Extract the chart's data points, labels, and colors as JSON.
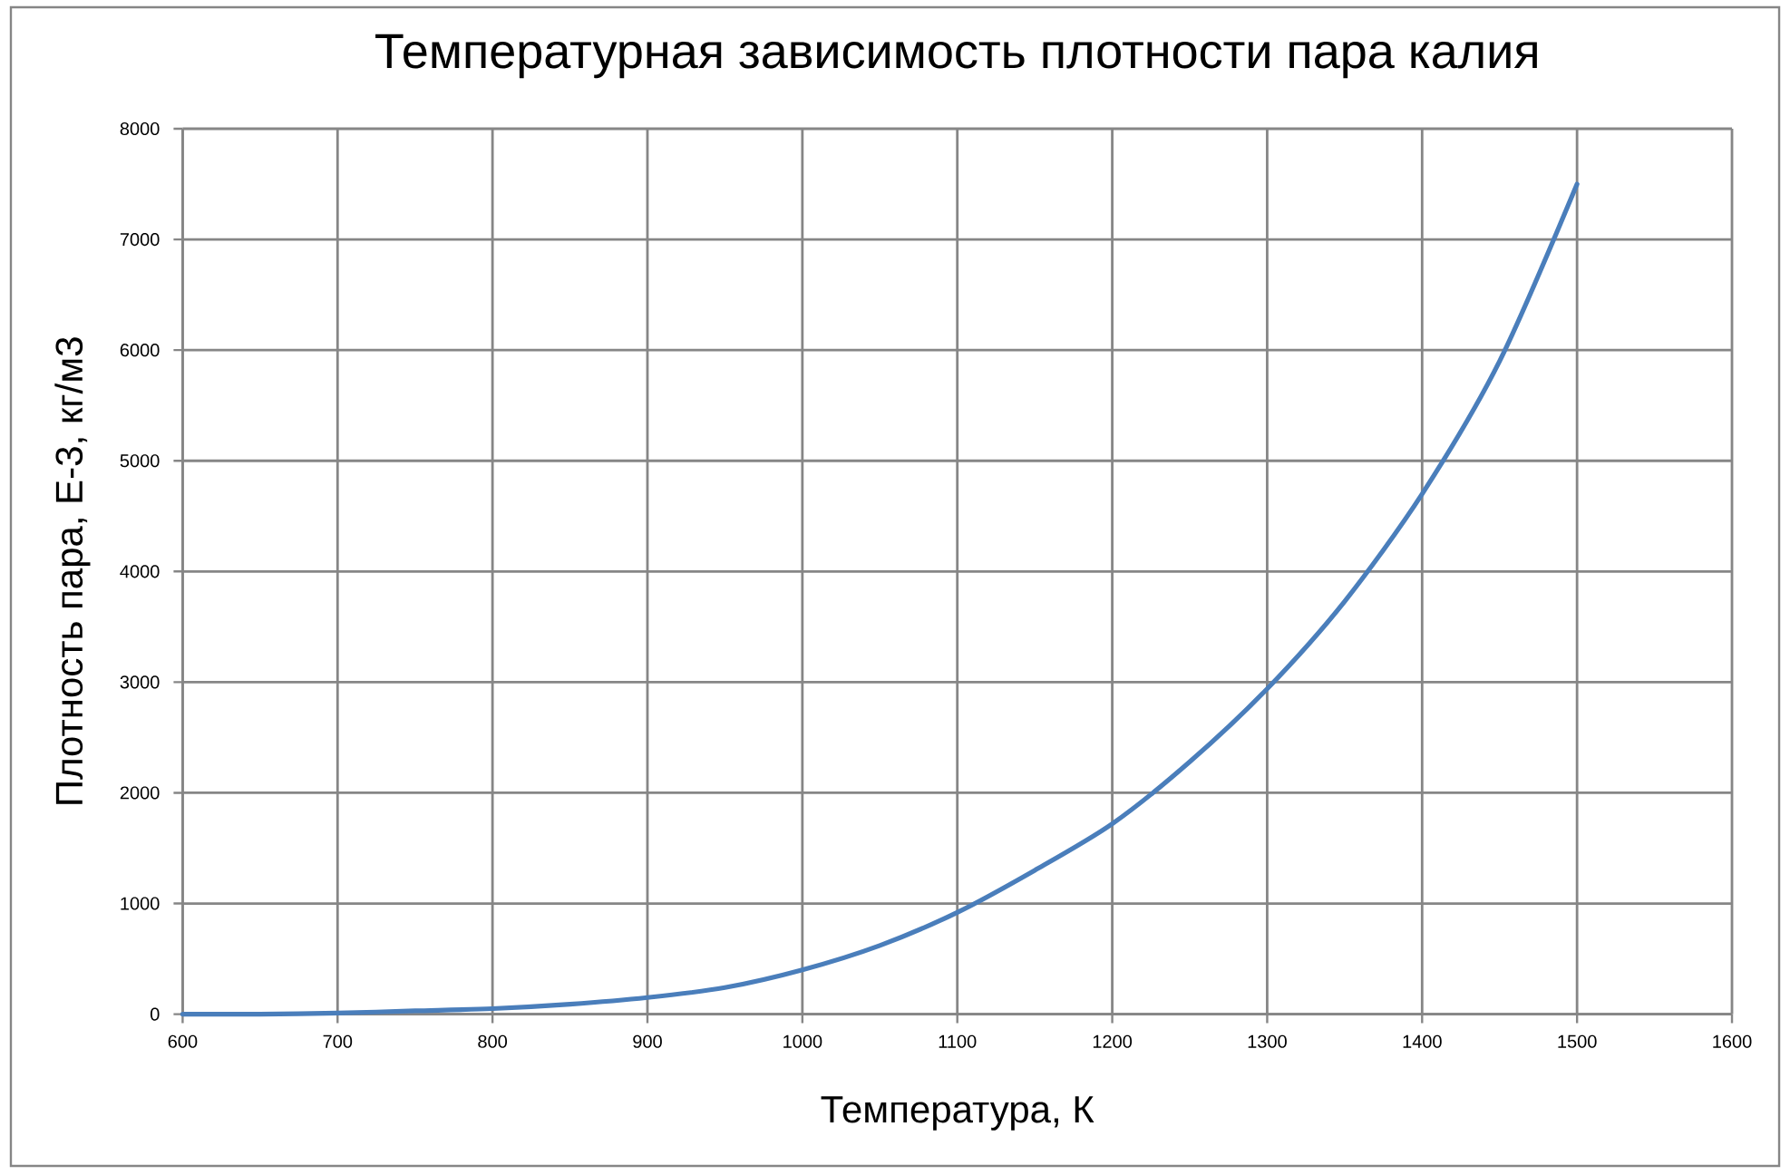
{
  "chart_data": {
    "type": "line",
    "title": "Температурная зависимость плотности пара калия",
    "xlabel": "Температура, К",
    "ylabel": "Плотность пара, Е-3, кг/м3",
    "x": [
      600,
      650,
      700,
      750,
      800,
      850,
      900,
      950,
      1000,
      1050,
      1100,
      1150,
      1200,
      1250,
      1300,
      1350,
      1400,
      1450,
      1500
    ],
    "series": [
      {
        "color": "#4a7ebb",
        "values": [
          0,
          0,
          10,
          30,
          50,
          90,
          150,
          240,
          400,
          620,
          920,
          1300,
          1720,
          2280,
          2940,
          3730,
          4700,
          5900,
          7500
        ]
      }
    ],
    "xlim": [
      600,
      1600
    ],
    "ylim": [
      0,
      8000
    ],
    "xticks": [
      600,
      700,
      800,
      900,
      1000,
      1100,
      1200,
      1300,
      1400,
      1500,
      1600
    ],
    "yticks": [
      0,
      1000,
      2000,
      3000,
      4000,
      5000,
      6000,
      7000,
      8000
    ],
    "grid": true,
    "legend": false,
    "marker": "none",
    "line_style": "solid"
  }
}
